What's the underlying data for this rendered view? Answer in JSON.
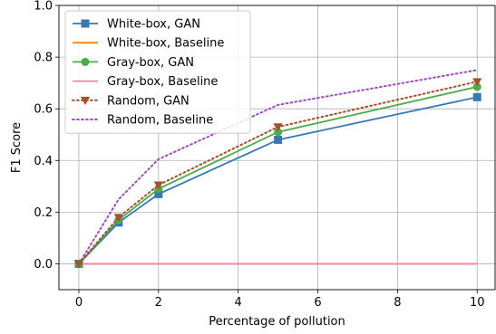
{
  "chart_data": {
    "type": "line",
    "xlabel": "Percentage of pollution",
    "ylabel": "F1 Score",
    "xlim": [
      -0.5,
      10.45
    ],
    "ylim": [
      -0.1,
      1.0
    ],
    "xticks": [
      0,
      2,
      4,
      6,
      8,
      10
    ],
    "yticks": [
      0.0,
      0.2,
      0.4,
      0.6,
      0.8,
      1.0
    ],
    "xtick_labels": [
      "0",
      "2",
      "4",
      "6",
      "8",
      "10"
    ],
    "ytick_labels": [
      "0.0",
      "0.2",
      "0.4",
      "0.6",
      "0.8",
      "1.0"
    ],
    "grid": true,
    "legend_position": "top-left",
    "series": [
      {
        "name": "White-box, GAN",
        "color": "#3a78b5",
        "dash": "solid",
        "marker": "square",
        "x": [
          0,
          1,
          2,
          5,
          10
        ],
        "y": [
          0.0,
          0.16,
          0.27,
          0.48,
          0.645
        ]
      },
      {
        "name": "White-box, Baseline",
        "color": "#ff7f0e",
        "dash": "solid",
        "marker": "none",
        "x": [
          0,
          1,
          2,
          5,
          10
        ],
        "y": [
          0.0,
          0.0,
          0.0,
          0.0,
          0.0
        ]
      },
      {
        "name": "Gray-box, GAN",
        "color": "#4cab4a",
        "dash": "solid",
        "marker": "circle",
        "x": [
          0,
          1,
          2,
          5,
          10
        ],
        "y": [
          0.0,
          0.17,
          0.29,
          0.51,
          0.685
        ]
      },
      {
        "name": "Gray-box, Baseline",
        "color": "#f781a8",
        "dash": "solid",
        "marker": "none",
        "x": [
          0,
          1,
          2,
          5,
          10
        ],
        "y": [
          0.0,
          0.0,
          0.0,
          0.0,
          0.0
        ]
      },
      {
        "name": "Random, GAN",
        "color": "#a2532c",
        "dash": "dotted",
        "marker": "triangle-down",
        "x": [
          0,
          1,
          2,
          5,
          10
        ],
        "y": [
          0.0,
          0.18,
          0.305,
          0.53,
          0.705
        ]
      },
      {
        "name": "Random, Baseline",
        "color": "#9f4dbf",
        "dash": "dotted",
        "marker": "none",
        "x": [
          0,
          1,
          2,
          5,
          10
        ],
        "y": [
          0.0,
          0.25,
          0.405,
          0.615,
          0.75
        ]
      }
    ]
  }
}
